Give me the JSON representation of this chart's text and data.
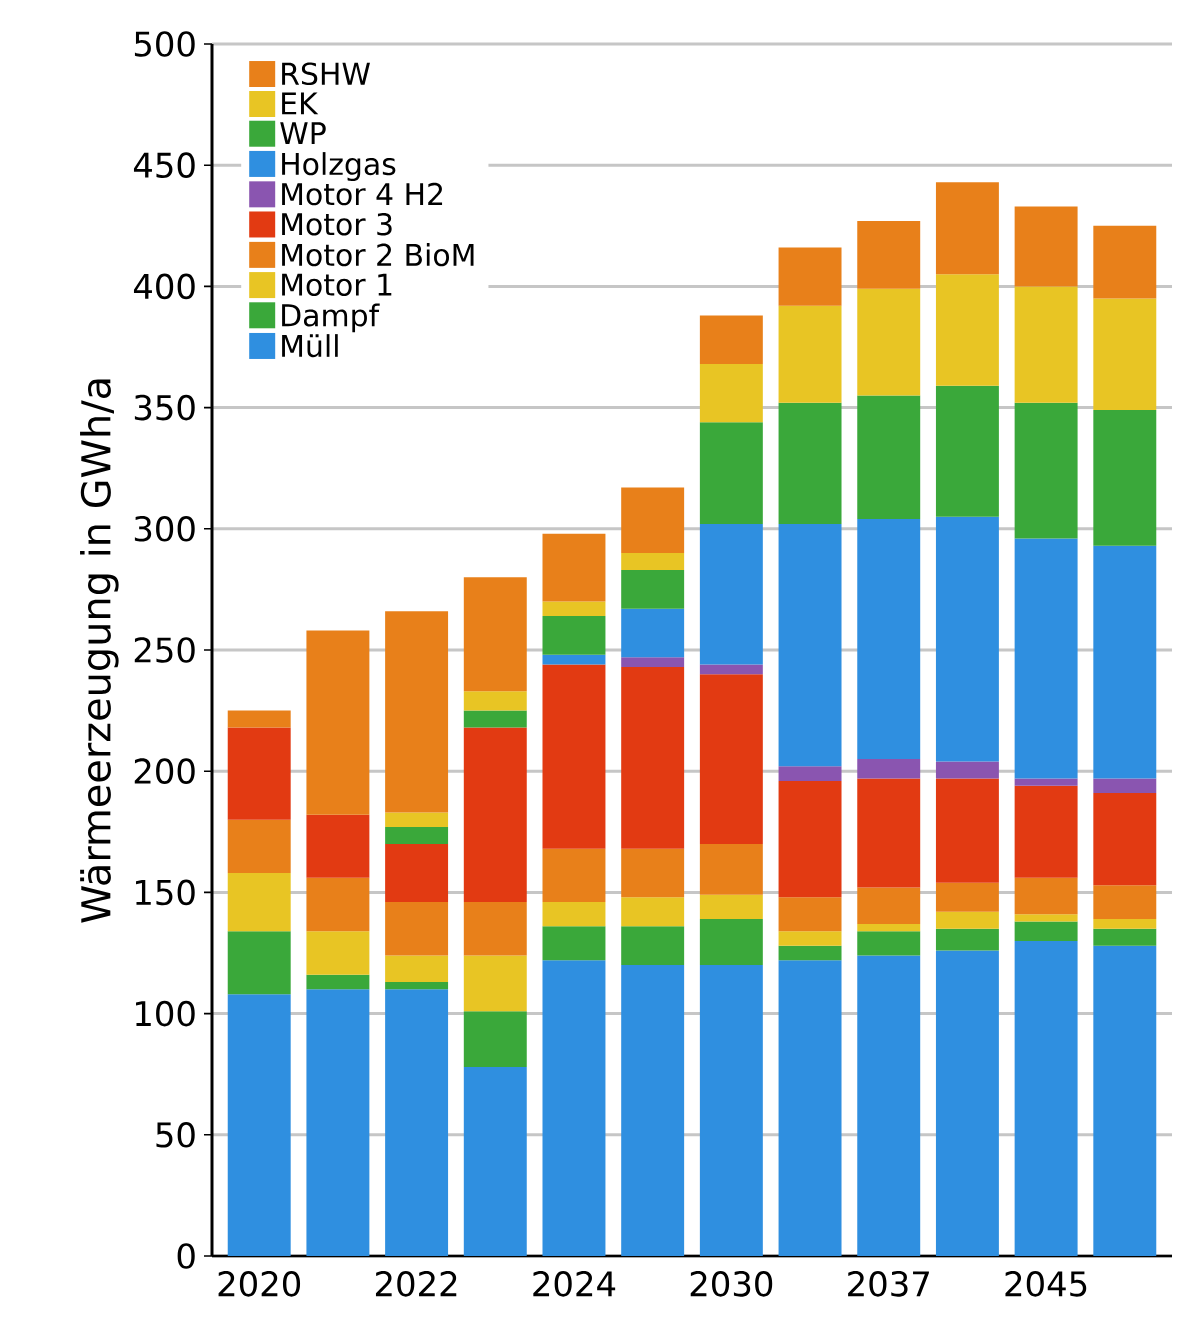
{
  "chart_data": {
    "type": "bar",
    "stacked": true,
    "ylabel": "Wärmeerzeugung in GWh/a",
    "categories": [
      "2020",
      null,
      "2022",
      null,
      "2024",
      null,
      "2030",
      null,
      "2037",
      null,
      "2045",
      null
    ],
    "ylim": [
      0,
      500
    ],
    "yticks": [
      0,
      50,
      100,
      150,
      200,
      250,
      300,
      350,
      400,
      450,
      500
    ],
    "grid": "y",
    "legend": "top left",
    "series": [
      {
        "name": "Müll",
        "color": "#2f8fe0",
        "values": [
          108,
          110,
          110,
          78,
          122,
          120,
          120,
          122,
          124,
          126,
          130,
          128
        ]
      },
      {
        "name": "Dampf",
        "color": "#3aa83a",
        "values": [
          26,
          6,
          3,
          23,
          14,
          16,
          19,
          6,
          10,
          9,
          8,
          7
        ]
      },
      {
        "name": "Motor 1",
        "color": "#e8c524",
        "values": [
          24,
          18,
          11,
          23,
          10,
          12,
          10,
          6,
          3,
          7,
          3,
          4
        ]
      },
      {
        "name": "Motor 2 BioM",
        "color": "#e8801a",
        "values": [
          22,
          22,
          22,
          22,
          22,
          20,
          21,
          14,
          15,
          12,
          15,
          14
        ]
      },
      {
        "name": "Motor 3",
        "color": "#e23a12",
        "values": [
          38,
          26,
          24,
          72,
          76,
          75,
          70,
          48,
          45,
          43,
          38,
          38
        ]
      },
      {
        "name": "Motor 4 H2",
        "color": "#8a55b0",
        "values": [
          null,
          null,
          null,
          null,
          null,
          4,
          4,
          6,
          8,
          7,
          3,
          6
        ]
      },
      {
        "name": "Holzgas",
        "color": "#2f8fe0",
        "values": [
          null,
          null,
          null,
          null,
          4,
          20,
          58,
          100,
          99,
          101,
          99,
          96
        ]
      },
      {
        "name": "WP",
        "color": "#3aa83a",
        "values": [
          null,
          null,
          7,
          7,
          16,
          16,
          42,
          50,
          51,
          54,
          56,
          56
        ]
      },
      {
        "name": "EK",
        "color": "#e8c524",
        "values": [
          null,
          null,
          6,
          8,
          6,
          7,
          24,
          40,
          44,
          46,
          48,
          46
        ]
      },
      {
        "name": "RSHW",
        "color": "#e8801a",
        "values": [
          7,
          76,
          83,
          47,
          28,
          27,
          20,
          24,
          28,
          38,
          33,
          30
        ]
      }
    ]
  }
}
